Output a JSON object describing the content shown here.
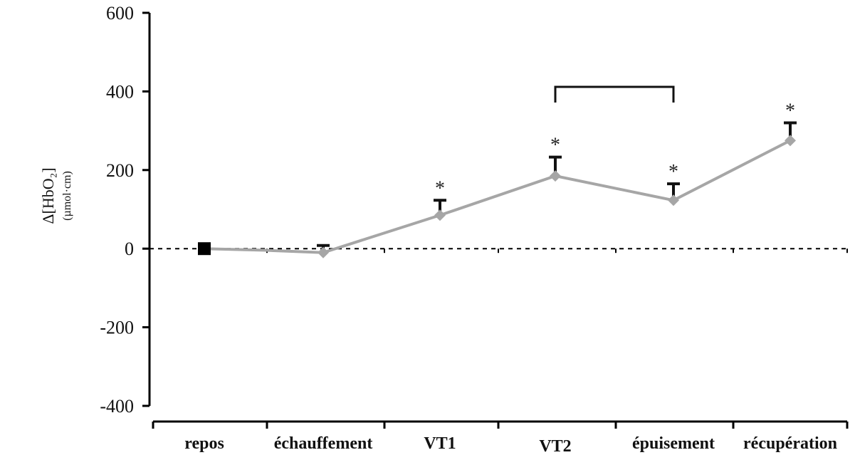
{
  "chart_data": {
    "type": "line",
    "ylabel": "Δ[HbO₂]",
    "yunit": "(µmol·cm)",
    "ylim": [
      -400,
      600
    ],
    "yticks": [
      600,
      400,
      200,
      0,
      -200,
      -400
    ],
    "categories": [
      "repos",
      "échauffement",
      "VT1",
      "VT2",
      "épuisement",
      "récupération"
    ],
    "x_intermediate_between": [
      "repos",
      "échauffement"
    ],
    "series": [
      {
        "values": [
          0,
          -10,
          85,
          185,
          123,
          275
        ],
        "error": [
          0,
          18,
          38,
          48,
          42,
          45
        ],
        "intermediate_value": -4,
        "color": "#a6a6a6",
        "first_marker_color": "#000000"
      }
    ],
    "significance_markers": [
      "",
      "",
      "*",
      "*",
      "*",
      "*"
    ],
    "bracket": [
      "VT2",
      "épuisement"
    ],
    "reference_line": 0,
    "grid": false
  }
}
